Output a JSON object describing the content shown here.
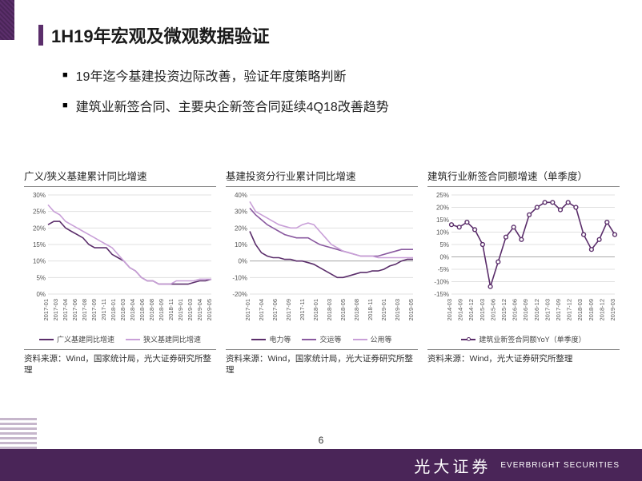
{
  "title": "1H19年宏观及微观数据验证",
  "bullets": [
    "19年迄今基建投资边际改善，验证年度策略判断",
    "建筑业新签合同、主要央企新签合同延续4Q18改善趋势"
  ],
  "page_number": "6",
  "brand_cn": "光大证券",
  "brand_en": "EVERBRIGHT SECURITIES",
  "colors": {
    "primary": "#5b2e6b",
    "light": "#c9a0d8",
    "grid": "#e0e0e0",
    "axis": "#888888",
    "line2": "#8a5aa0",
    "line3": "#b89bc7"
  },
  "chart1": {
    "title": "广义/狭义基建累计同比增速",
    "series": [
      {
        "name": "广义基建同比增速",
        "color": "#5b2e6b",
        "values": [
          21,
          22,
          22,
          20,
          19,
          18,
          17,
          15,
          14,
          14,
          14,
          12,
          11,
          10,
          8,
          7,
          5,
          4,
          4,
          3,
          3,
          3,
          3,
          3,
          3,
          3.5,
          4,
          4,
          4.5
        ]
      },
      {
        "name": "狭义基建同比增速",
        "color": "#c9a0d8",
        "values": [
          27,
          25,
          24,
          22,
          21,
          20,
          19,
          18,
          17,
          16,
          15,
          14,
          12,
          10,
          8,
          7,
          5,
          4,
          4,
          3,
          3,
          3,
          4,
          4,
          4,
          4,
          4.5,
          4.5,
          4.5
        ]
      }
    ],
    "ylim": [
      0,
      30
    ],
    "ystep": 5,
    "yfmt": "%",
    "xlabels": [
      "2017-01",
      "2017-03",
      "2017-04",
      "2017-06",
      "2017-08",
      "2017-09",
      "2017-11",
      "2018-01",
      "2018-03",
      "2018-04",
      "2018-06",
      "2018-08",
      "2018-09",
      "2018-11",
      "2019-01",
      "2019-03",
      "2019-04",
      "2019-05"
    ],
    "source": "资料来源：Wind，国家统计局，光大证券研究所整理"
  },
  "chart2": {
    "title": "基建投资分行业累计同比增速",
    "series": [
      {
        "name": "电力等",
        "color": "#5b2e6b",
        "values": [
          18,
          10,
          5,
          3,
          2,
          2,
          1,
          1,
          0,
          0,
          -1,
          -2,
          -4,
          -6,
          -8,
          -10,
          -10,
          -9,
          -8,
          -7,
          -7,
          -6,
          -6,
          -5,
          -3,
          -2,
          0,
          1,
          1
        ]
      },
      {
        "name": "交运等",
        "color": "#8a5aa0",
        "values": [
          32,
          28,
          25,
          22,
          20,
          18,
          16,
          15,
          14,
          14,
          14,
          12,
          10,
          9,
          8,
          7,
          6,
          5,
          4,
          3,
          3,
          3,
          3,
          4,
          5,
          6,
          7,
          7,
          7
        ]
      },
      {
        "name": "公用等",
        "color": "#c9a0d8",
        "values": [
          36,
          30,
          28,
          26,
          24,
          22,
          21,
          20,
          20,
          22,
          23,
          22,
          18,
          14,
          10,
          8,
          6,
          5,
          4,
          3,
          3,
          3,
          2,
          2,
          2,
          2,
          2,
          2,
          2
        ]
      }
    ],
    "ylim": [
      -20,
      40
    ],
    "ystep": 10,
    "yfmt": "%",
    "xlabels": [
      "2017-01",
      "2017-04",
      "2017-06",
      "2017-09",
      "2017-11",
      "2018-01",
      "2018-03",
      "2018-05",
      "2018-08",
      "2018-11",
      "2019-01",
      "2019-03",
      "2019-05"
    ],
    "source": "资料来源：Wind，国家统计局，光大证券研究所整理"
  },
  "chart3": {
    "title": "建筑行业新签合同额增速（单季度）",
    "series": [
      {
        "name": "建筑业新签合同额YoY（单季度）",
        "color": "#5b2e6b",
        "values": [
          13,
          12,
          14,
          11,
          5,
          -12,
          -2,
          8,
          12,
          7,
          17,
          20,
          22,
          22,
          19,
          22,
          20,
          9,
          3,
          7,
          14,
          9
        ]
      }
    ],
    "markers": true,
    "ylim": [
      -15,
      25
    ],
    "ystep": 5,
    "yfmt": "%",
    "xlabels": [
      "2014-03",
      "2014-09",
      "2014-12",
      "2015-03",
      "2015-06",
      "2015-12",
      "2016-06",
      "2016-09",
      "2016-12",
      "2017-03",
      "2017-09",
      "2017-12",
      "2018-03",
      "2018-09",
      "2018-12",
      "2019-03"
    ],
    "source": "资料来源：Wind，光大证券研究所整理"
  }
}
